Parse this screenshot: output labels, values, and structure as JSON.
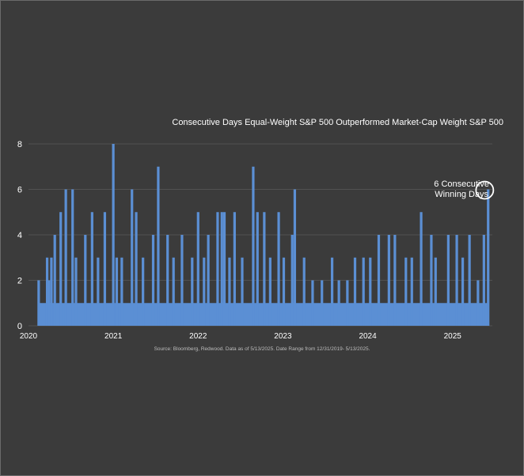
{
  "chart_data": {
    "type": "area",
    "title": "Consecutive Days Equal-Weight S&P 500 Outperformed Market-Cap Weight S&P 500",
    "source": "Source: Bloomberg, Redwood. Data as of 5/13/2025. Date Range from 12/31/2019- 5/13/2025.",
    "annotation": {
      "line1": "6 Consecutive",
      "line2": "Winning Days",
      "x": 2025.37,
      "y": 6
    },
    "xlabel": "",
    "ylabel": "",
    "x_ticks": [
      "2020",
      "2021",
      "2022",
      "2023",
      "2024",
      "2025"
    ],
    "y_ticks": [
      "0",
      "2",
      "4",
      "6",
      "8"
    ],
    "xlim": [
      2020,
      2025.6
    ],
    "ylim": [
      0,
      8
    ],
    "grid": "horizontal",
    "legend": "none",
    "color": "#5b8fd4",
    "x": [
      2020.12,
      2020.22,
      2020.24,
      2020.27,
      2020.31,
      2020.38,
      2020.44,
      2020.52,
      2020.56,
      2020.67,
      2020.75,
      2020.82,
      2020.9,
      2021.0,
      2021.04,
      2021.1,
      2021.22,
      2021.27,
      2021.35,
      2021.47,
      2021.53,
      2021.64,
      2021.71,
      2021.81,
      2021.93,
      2022.0,
      2022.07,
      2022.12,
      2022.23,
      2022.28,
      2022.31,
      2022.37,
      2022.43,
      2022.52,
      2022.65,
      2022.7,
      2022.78,
      2022.85,
      2022.95,
      2023.01,
      2023.11,
      2023.14,
      2023.25,
      2023.35,
      2023.46,
      2023.58,
      2023.66,
      2023.76,
      2023.85,
      2023.95,
      2024.03,
      2024.13,
      2024.25,
      2024.32,
      2024.45,
      2024.52,
      2024.63,
      2024.75,
      2024.8,
      2024.95,
      2025.05,
      2025.12,
      2025.2,
      2025.3,
      2025.37,
      2025.42
    ],
    "values": [
      2,
      3,
      2,
      3,
      4,
      5,
      6,
      6,
      3,
      4,
      5,
      3,
      5,
      8,
      3,
      3,
      6,
      5,
      3,
      4,
      7,
      4,
      3,
      4,
      3,
      5,
      3,
      4,
      5,
      5,
      5,
      3,
      5,
      3,
      7,
      5,
      5,
      3,
      5,
      3,
      4,
      6,
      3,
      2,
      2,
      3,
      2,
      2,
      3,
      3,
      3,
      4,
      4,
      4,
      3,
      3,
      5,
      4,
      3,
      4,
      4,
      3,
      4,
      2,
      4,
      6
    ]
  }
}
